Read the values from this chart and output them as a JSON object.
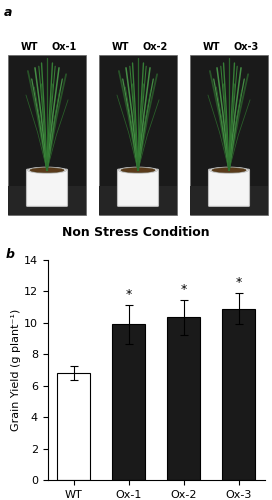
{
  "categories": [
    "WT",
    "Ox-1",
    "Ox-2",
    "Ox-3"
  ],
  "values": [
    6.8,
    9.9,
    10.35,
    10.9
  ],
  "errors": [
    0.45,
    1.25,
    1.1,
    1.0
  ],
  "bar_colors": [
    "#ffffff",
    "#1a1a1a",
    "#1a1a1a",
    "#1a1a1a"
  ],
  "bar_edgecolors": [
    "#000000",
    "#000000",
    "#000000",
    "#000000"
  ],
  "ylabel": "Grain Yield (g plant⁻¹)",
  "ylim": [
    0,
    14
  ],
  "yticks": [
    0,
    2,
    4,
    6,
    8,
    10,
    12,
    14
  ],
  "significance": [
    false,
    true,
    true,
    true
  ],
  "panel_a_label": "a",
  "panel_b_label": "b",
  "nonstress_label": "Non Stress Condition",
  "background_color": "#ffffff",
  "bar_width": 0.6,
  "tick_fontsize": 8,
  "label_fontsize": 8,
  "photo_bg": "#1a1a1a",
  "photo_floor": "#3a3a3a",
  "pot_color": "#f5f5f5",
  "pot_edge": "#bbbbbb",
  "soil_color": "#5a3a1a",
  "plant_colors": [
    "#2d6e2d",
    "#3a8a3a",
    "#4a9a4a",
    "#2a5a2a",
    "#3d7d3d"
  ],
  "label_pairs": [
    [
      "WT",
      "Ox-1"
    ],
    [
      "WT",
      "Ox-2"
    ],
    [
      "WT",
      "Ox-3"
    ]
  ],
  "photo_outer_bg": "#e8e8e8"
}
